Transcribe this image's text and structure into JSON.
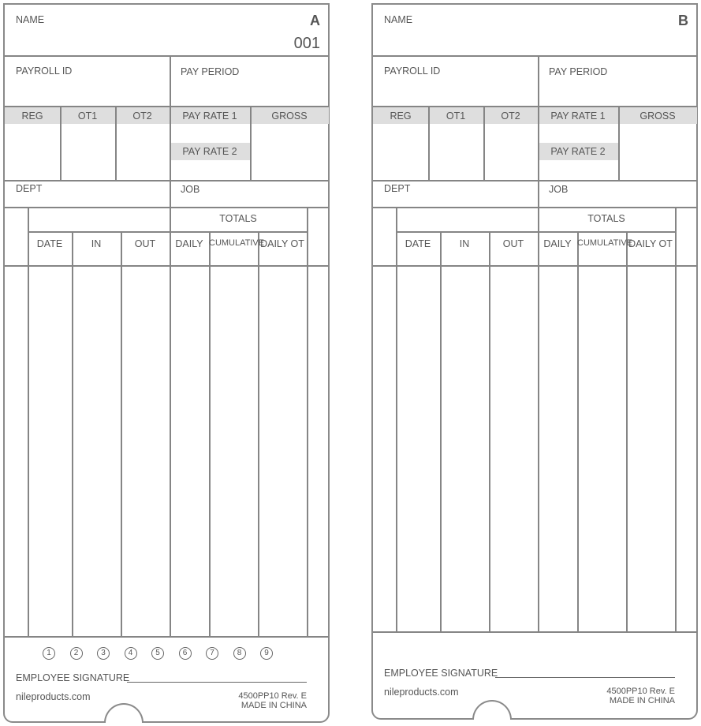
{
  "cards": [
    {
      "letter": "A",
      "card_number": "001",
      "name_label": "NAME",
      "payroll_id_label": "PAYROLL ID",
      "pay_period_label": "PAY PERIOD",
      "reg_label": "REG",
      "ot1_label": "OT1",
      "ot2_label": "OT2",
      "pay_rate_1_label": "PAY RATE 1",
      "pay_rate_2_label": "PAY RATE 2",
      "gross_label": "GROSS",
      "dept_label": "DEPT",
      "job_label": "JOB",
      "totals_label": "TOTALS",
      "columns": [
        "DATE",
        "IN",
        "OUT",
        "DAILY",
        "CUMULATIVE",
        "DAILY OT"
      ],
      "day_markers": [
        "1",
        "2",
        "3",
        "4",
        "5",
        "6",
        "7",
        "8",
        "9"
      ],
      "signature_label": "EMPLOYEE SIGNATURE",
      "website": "nileproducts.com",
      "form_code": "4500PP10 Rev. E",
      "made_in": "MADE IN CHINA"
    },
    {
      "letter": "B",
      "name_label": "NAME",
      "payroll_id_label": "PAYROLL ID",
      "pay_period_label": "PAY PERIOD",
      "reg_label": "REG",
      "ot1_label": "OT1",
      "ot2_label": "OT2",
      "pay_rate_1_label": "PAY RATE 1",
      "pay_rate_2_label": "PAY RATE 2",
      "gross_label": "GROSS",
      "dept_label": "DEPT",
      "job_label": "JOB",
      "totals_label": "TOTALS",
      "columns": [
        "DATE",
        "IN",
        "OUT",
        "DAILY",
        "CUMULATIVE",
        "DAILY OT"
      ],
      "signature_label": "EMPLOYEE SIGNATURE",
      "website": "nileproducts.com",
      "form_code": "4500PP10 Rev. E",
      "made_in": "MADE IN CHINA"
    }
  ]
}
